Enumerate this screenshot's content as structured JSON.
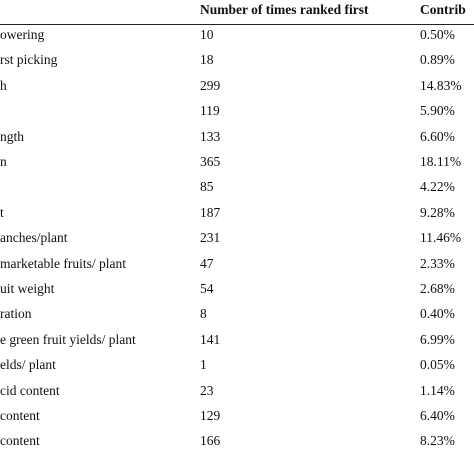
{
  "table": {
    "header": [
      null,
      "Number of times ranked first",
      "Contrib"
    ],
    "rows": [
      [
        "owering",
        "10",
        "0.50%"
      ],
      [
        "rst picking",
        "18",
        "0.89%"
      ],
      [
        "h",
        "299",
        "14.83%"
      ],
      [
        null,
        "119",
        "5.90%"
      ],
      [
        "ngth",
        "133",
        "6.60%"
      ],
      [
        "n",
        "365",
        "18.11%"
      ],
      [
        null,
        "85",
        "4.22%"
      ],
      [
        "t",
        "187",
        "9.28%"
      ],
      [
        "anches/plant",
        "231",
        "11.46%"
      ],
      [
        "marketable fruits/ plant",
        "47",
        "2.33%"
      ],
      [
        "uit weight",
        "54",
        "2.68%"
      ],
      [
        "ration",
        "8",
        "0.40%"
      ],
      [
        "e green fruit yields/ plant",
        "141",
        "6.99%"
      ],
      [
        "elds/ plant",
        "1",
        "0.05%"
      ],
      [
        "cid content",
        "23",
        "1.14%"
      ],
      [
        "content",
        "129",
        "6.40%"
      ],
      [
        "content",
        "166",
        "8.23%"
      ]
    ]
  }
}
